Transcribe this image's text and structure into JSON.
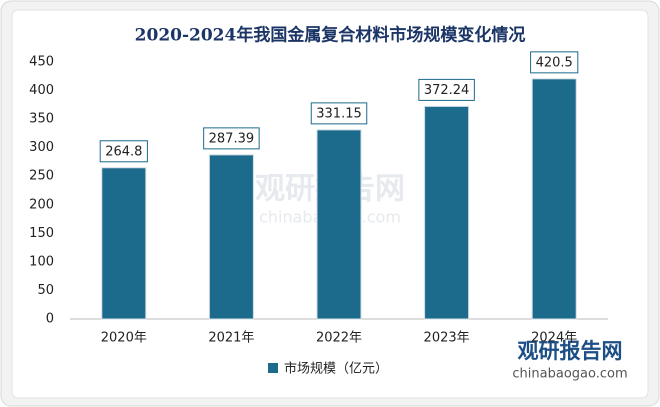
{
  "chart_data": {
    "type": "bar",
    "title": "2020-2024年我国金属复合材料市场规模变化情况",
    "categories": [
      "2020年",
      "2021年",
      "2022年",
      "2023年",
      "2024年"
    ],
    "series": [
      {
        "name": "市场规模（亿元）",
        "color": "#1c6a8c",
        "values": [
          264.8,
          287.39,
          331.15,
          372.24,
          420.5
        ]
      }
    ],
    "ylim": [
      0,
      450
    ],
    "yticks": [
      0,
      50,
      100,
      150,
      200,
      250,
      300,
      350,
      400,
      450
    ],
    "grid": false,
    "legend": "bottom"
  },
  "watermark": {
    "name": "观研报告网",
    "url": "chinabaogao.com"
  }
}
